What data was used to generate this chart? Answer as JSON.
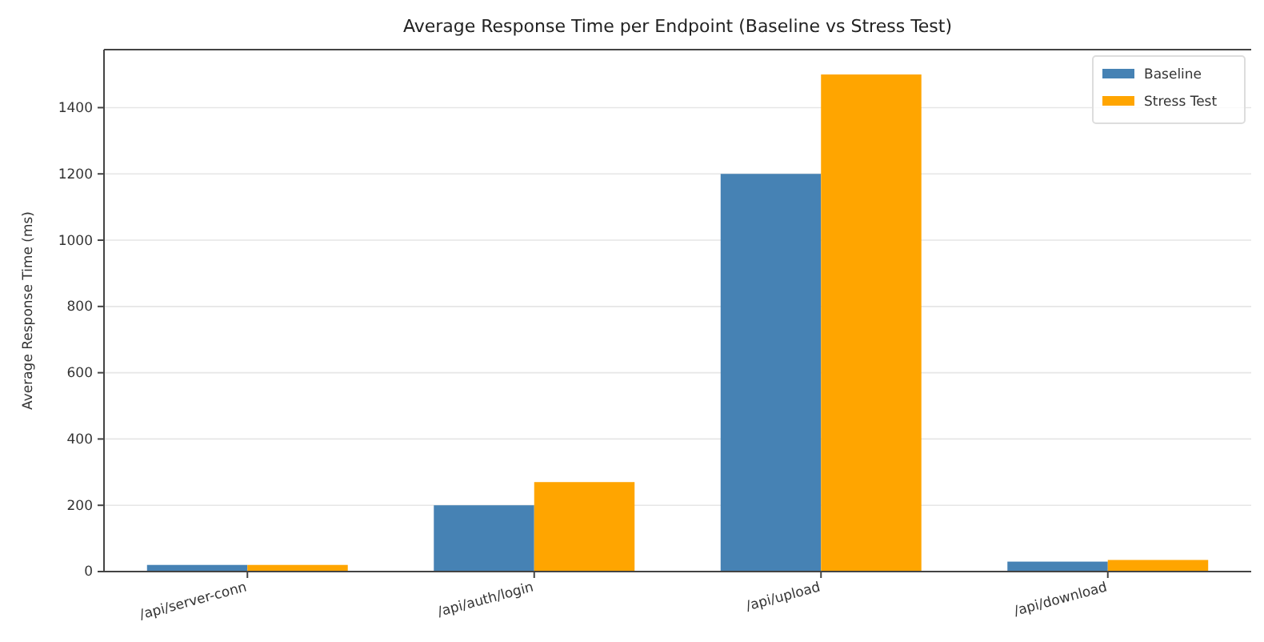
{
  "chart_data": {
    "type": "bar",
    "title": "Average Response Time per Endpoint (Baseline vs Stress Test)",
    "ylabel": "Average Response Time (ms)",
    "categories": [
      "/api/server-conn",
      "/api/auth/login",
      "/api/upload",
      "/api/download"
    ],
    "series": [
      {
        "name": "Baseline",
        "color": "#4682b4",
        "values": [
          20,
          200,
          1200,
          30
        ]
      },
      {
        "name": "Stress Test",
        "color": "#ffa500",
        "values": [
          20,
          270,
          1500,
          35
        ]
      }
    ],
    "ylim": [
      0,
      1575
    ],
    "yticks": [
      0,
      200,
      400,
      600,
      800,
      1000,
      1200,
      1400
    ],
    "grid": "y",
    "legend": "top right"
  }
}
